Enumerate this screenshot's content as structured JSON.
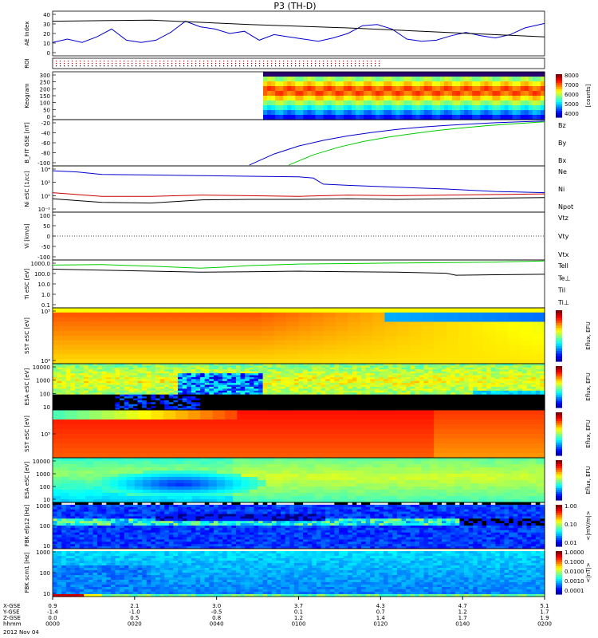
{
  "title": "P3 (TH-D)",
  "colors": {
    "blue": "#0000cc",
    "red": "#cc0000",
    "green": "#00cc00",
    "black": "#000000"
  },
  "chart_data": [
    {
      "type": "line",
      "panel": "ae",
      "ylabel": "AE Index",
      "yticks": [
        "40",
        "30",
        "20",
        "10",
        "0"
      ],
      "ylim": [
        0,
        40
      ],
      "series": [
        {
          "name": "Kyoto AE",
          "color": "#0000cc",
          "x": [
            0,
            0.03,
            0.06,
            0.09,
            0.12,
            0.15,
            0.18,
            0.21,
            0.24,
            0.27,
            0.3,
            0.33,
            0.36,
            0.39,
            0.42,
            0.45,
            0.48,
            0.51,
            0.54,
            0.57,
            0.6,
            0.63,
            0.66,
            0.69,
            0.72,
            0.75,
            0.78,
            0.81,
            0.84,
            0.87,
            0.9,
            0.93,
            0.96,
            1.0
          ],
          "y": [
            12,
            15,
            12,
            17,
            24,
            14,
            12,
            14,
            21,
            31,
            26,
            24,
            20,
            22,
            14,
            19,
            17,
            15,
            13,
            16,
            20,
            27,
            28,
            24,
            15,
            13,
            14,
            18,
            21,
            18,
            16,
            19,
            25,
            29
          ]
        },
        {
          "name": "Themis AE",
          "color": "#000000",
          "x": [
            0,
            0.2,
            0.4,
            0.6,
            0.8,
            1.0
          ],
          "y": [
            31,
            32,
            28,
            25,
            21,
            17
          ]
        }
      ]
    },
    {
      "type": "heatmap",
      "panel": "roi",
      "ylabel": "ROI"
    },
    {
      "type": "heatmap",
      "panel": "keogram",
      "ylabel": "Keogram",
      "yticks": [
        "300",
        "250",
        "200",
        "150",
        "100",
        "50",
        "0"
      ],
      "ylim": [
        0,
        300
      ],
      "colorbar": {
        "ticks": [
          "8000",
          "7000",
          "6000",
          "5000",
          "4000"
        ],
        "label": "[counts]"
      }
    },
    {
      "type": "line",
      "panel": "bfield",
      "ylabel": "B_FIT GSE [nT]",
      "yticks": [
        "-20",
        "-40",
        "-60",
        "-80",
        "-100"
      ],
      "ylim": [
        -105,
        0
      ],
      "legend": [
        {
          "name": "Bz",
          "color": "#cc0000"
        },
        {
          "name": "By",
          "color": "#00cc00"
        },
        {
          "name": "Bx",
          "color": "#0000cc"
        }
      ],
      "series": [
        {
          "name": "Bx",
          "color": "#0000cc",
          "x": [
            0.4,
            0.45,
            0.5,
            0.55,
            0.6,
            0.65,
            0.7,
            0.75,
            0.8,
            0.85,
            0.9,
            0.95,
            1.0
          ],
          "y": [
            -103,
            -78,
            -60,
            -47,
            -37,
            -29,
            -22,
            -17,
            -13,
            -10,
            -7,
            -5,
            -3
          ]
        },
        {
          "name": "By",
          "color": "#00cc00",
          "x": [
            0.48,
            0.53,
            0.58,
            0.63,
            0.68,
            0.73,
            0.78,
            0.83,
            0.88,
            0.93,
            1.0
          ],
          "y": [
            -103,
            -80,
            -63,
            -50,
            -40,
            -32,
            -25,
            -19,
            -14,
            -10,
            -5
          ]
        }
      ]
    },
    {
      "type": "line",
      "panel": "density",
      "ylabel": "Ni eSC [1/cc]",
      "yticks": [
        "10⁴",
        "10²",
        "10⁰",
        "10⁻²"
      ],
      "ylog": true,
      "ylim": [
        -2.6,
        5
      ],
      "legend": [
        {
          "name": "Ne",
          "color": "#cc0000"
        },
        {
          "name": "Ni",
          "color": "#000000"
        },
        {
          "name": "Npot",
          "color": "#0000cc"
        }
      ],
      "series": [
        {
          "name": "Npot",
          "color": "#0000cc",
          "x": [
            0,
            0.05,
            0.1,
            0.2,
            0.3,
            0.4,
            0.5,
            0.53,
            0.55,
            0.6,
            0.7,
            0.8,
            0.9,
            1.0
          ],
          "y": [
            4.2,
            4.0,
            3.6,
            3.5,
            3.4,
            3.3,
            3.2,
            3.0,
            2.0,
            1.8,
            1.5,
            1.2,
            0.8,
            0.6
          ]
        },
        {
          "name": "Ne",
          "color": "#cc0000",
          "x": [
            0,
            0.1,
            0.2,
            0.3,
            0.4,
            0.5,
            0.6,
            0.7,
            0.8,
            0.9,
            1.0
          ],
          "y": [
            0.6,
            0.0,
            0.0,
            0.2,
            0.1,
            0.0,
            0.2,
            0.1,
            0.2,
            0.3,
            0.4
          ]
        },
        {
          "name": "Ni",
          "color": "#000000",
          "x": [
            0,
            0.1,
            0.2,
            0.3,
            0.4,
            0.5,
            0.6,
            0.7,
            0.8,
            0.9,
            1.0
          ],
          "y": [
            -0.4,
            -1.0,
            -1.1,
            -0.6,
            -0.5,
            -0.5,
            -0.4,
            -0.5,
            -0.4,
            -0.3,
            -0.2
          ]
        }
      ]
    },
    {
      "type": "line",
      "panel": "velocity",
      "ylabel": "Vi [km/s]",
      "yticks": [
        "100",
        "50",
        "0",
        "-50",
        "-100"
      ],
      "ylim": [
        -110,
        110
      ],
      "legend": [
        {
          "name": "Vtz",
          "color": "#cc0000"
        },
        {
          "name": "Vty",
          "color": "#00cc00"
        },
        {
          "name": "Vtx",
          "color": "#0000cc"
        }
      ]
    },
    {
      "type": "line",
      "panel": "temperature",
      "ylabel": "Ti eSC [eV]",
      "yticks": [
        "1000.0",
        "100.0",
        "10.0",
        "1.0",
        "0.1"
      ],
      "ylog": true,
      "ylim": [
        -1.2,
        3.5
      ],
      "legend": [
        {
          "name": "Tell",
          "color": "#000000"
        },
        {
          "name": "Te⊥",
          "color": "#cc0000"
        },
        {
          "name": "Til",
          "color": "#00cc00"
        },
        {
          "name": "Ti⊥",
          "color": "#0000cc"
        }
      ],
      "series": [
        {
          "name": "Til",
          "color": "#00cc00",
          "x": [
            0,
            0.1,
            0.2,
            0.3,
            0.35,
            0.4,
            0.5,
            0.6,
            0.7,
            0.8,
            0.9,
            1.0
          ],
          "y": [
            3.0,
            3.05,
            2.9,
            2.7,
            2.8,
            2.95,
            3.1,
            3.15,
            3.2,
            3.25,
            3.3,
            3.4
          ]
        },
        {
          "name": "Tell",
          "color": "#000000",
          "x": [
            0,
            0.1,
            0.2,
            0.3,
            0.4,
            0.5,
            0.6,
            0.7,
            0.8,
            0.82,
            0.9,
            1.0
          ],
          "y": [
            2.6,
            2.5,
            2.4,
            2.3,
            2.35,
            2.4,
            2.35,
            2.3,
            2.2,
            2.0,
            2.05,
            2.1
          ]
        }
      ]
    },
    {
      "type": "heatmap",
      "panel": "sst_e",
      "ylabel": "SST eSC [eV]",
      "yticks": [
        "10⁵",
        "10⁴"
      ],
      "colorbar": {
        "label": "Eflux, EFU"
      }
    },
    {
      "type": "heatmap",
      "panel": "esa_e",
      "ylabel": "ESA eSC [eV]",
      "yticks": [
        "10000",
        "1000",
        "100",
        "10"
      ],
      "colorbar": {
        "label": "Eflux, EFU"
      }
    },
    {
      "type": "heatmap",
      "panel": "sst_i",
      "ylabel": "SST eSC [eV]",
      "yticks": [
        "10⁵"
      ],
      "colorbar": {
        "label": "Eflux, EFU"
      }
    },
    {
      "type": "heatmap",
      "panel": "esa_i",
      "ylabel": "ESA eSC [eV]",
      "yticks": [
        "10000",
        "1000",
        "100",
        "10"
      ],
      "colorbar": {
        "label": "Eflux, EFU"
      }
    },
    {
      "type": "heatmap",
      "panel": "fbk_e",
      "ylabel": "FBK efp12 [Hz]",
      "yticks": [
        "1000",
        "100",
        "10"
      ],
      "colorbar": {
        "ticks": [
          "1.00",
          "0.10",
          "0.01"
        ],
        "label": "<|mV/m|>"
      }
    },
    {
      "type": "heatmap",
      "panel": "fbk_b",
      "ylabel": "FBK scm1 [Hz]",
      "yticks": [
        "1000",
        "100",
        "10"
      ],
      "colorbar": {
        "ticks": [
          "1.0000",
          "0.1000",
          "0.0100",
          "0.0010",
          "0.0001"
        ],
        "label": "<|nT|>"
      }
    }
  ],
  "xaxis": {
    "rows": [
      {
        "label": "X-GSE",
        "values": [
          "0.9",
          "2.1",
          "3.0",
          "3.7",
          "4.3",
          "4.7",
          "5.1"
        ]
      },
      {
        "label": "Y-GSE",
        "values": [
          "-1.4",
          "-1.0",
          "-0.5",
          "0.1",
          "0.7",
          "1.2",
          "1.7"
        ]
      },
      {
        "label": "Z-GSE",
        "values": [
          "0.0",
          "0.5",
          "0.8",
          "1.2",
          "1.4",
          "1.7",
          "1.9"
        ]
      },
      {
        "label": "hhmm",
        "values": [
          "0000",
          "0020",
          "0040",
          "0100",
          "0120",
          "0140",
          "0200"
        ]
      }
    ],
    "date": "2012 Nov 04"
  }
}
